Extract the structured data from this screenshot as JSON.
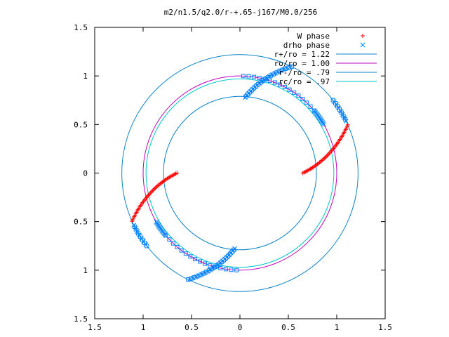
{
  "chart_data": {
    "type": "scatter",
    "title": "m2/n1.5/q2.0/r-+.65-j167/M0.0/256",
    "xlim": [
      -1.5,
      1.5
    ],
    "ylim": [
      -1.5,
      1.5
    ],
    "xtick_values": [
      -1.5,
      -1,
      -0.5,
      0,
      0.5,
      1,
      1.5
    ],
    "xtick_labels": [
      "1.5",
      "1",
      "0.5",
      "0",
      "0.5",
      "1",
      "1.5"
    ],
    "ytick_values": [
      1.5,
      1,
      0.5,
      0,
      -0.5,
      -1,
      -1.5
    ],
    "ytick_labels": [
      "1.5",
      "1",
      "0.5",
      "0",
      "0.5",
      "1",
      "1.5"
    ],
    "grid": false,
    "legend_position": "top-right",
    "colors": {
      "w_phase": "#ff0000",
      "drho_phase": "#0080ff",
      "r_plus": "#0a82c8",
      "ro": "#c000c0",
      "r_minus": "#0a82c8",
      "rc": "#00c8c8"
    },
    "series": [
      {
        "key": "w_phase",
        "name": "W phase",
        "marker": "plus",
        "color": "#ff0000",
        "arcs": [
          {
            "r_from": 0.65,
            "r_to": 1.22,
            "theta_from_deg": 0,
            "theta_to_deg": 24,
            "n": 45
          },
          {
            "r_from": 0.65,
            "r_to": 1.22,
            "theta_from_deg": 180,
            "theta_to_deg": 204,
            "n": 45
          }
        ]
      },
      {
        "key": "drho_phase",
        "name": "drho phase",
        "marker": "mixed",
        "color": "#0080ff",
        "arcs": [
          {
            "r_from": 0.78,
            "r_to": 1.22,
            "theta_from_deg": 86,
            "theta_to_deg": 64,
            "n": 38
          },
          {
            "r_from": 1.22,
            "r_to": 1.22,
            "theta_from_deg": 26,
            "theta_to_deg": 38,
            "n": 14
          },
          {
            "r_from": 0.78,
            "r_to": 1.22,
            "theta_from_deg": 266,
            "theta_to_deg": 244,
            "n": 38
          },
          {
            "r_from": 1.22,
            "r_to": 1.22,
            "theta_from_deg": 206,
            "theta_to_deg": 218,
            "n": 14
          }
        ]
      }
    ],
    "circles": [
      {
        "key": "r_plus",
        "name": "r+/ro = 1.22",
        "r": 1.22,
        "color": "#0a82c8"
      },
      {
        "key": "ro",
        "name": "ro/ro = 1.00",
        "r": 1.0,
        "color": "#c000c0"
      },
      {
        "key": "r_minus",
        "name": "r-/ro = .79",
        "r": 0.79,
        "color": "#0a82c8"
      },
      {
        "key": "rc",
        "name": "rc/ro = .97",
        "r": 0.97,
        "color": "#00c8c8"
      }
    ]
  }
}
